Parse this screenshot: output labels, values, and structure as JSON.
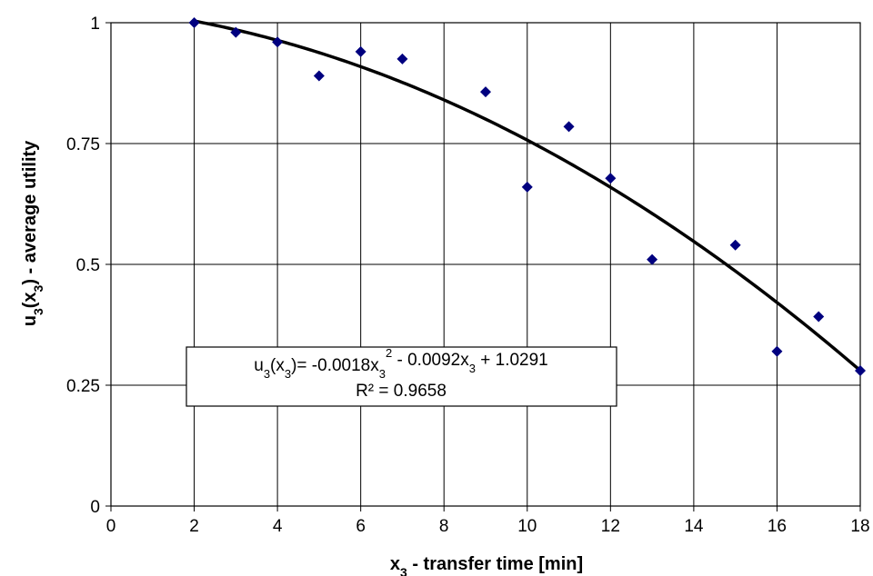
{
  "chart_data": {
    "type": "scatter",
    "x_axis": {
      "label": {
        "main": "x",
        "sub": "3",
        "rest": " - transfer time [min]"
      },
      "range": [
        0,
        18
      ],
      "ticks": [
        0,
        2,
        4,
        6,
        8,
        10,
        12,
        14,
        16,
        18
      ],
      "tick_labels": [
        "0",
        "2",
        "4",
        "6",
        "8",
        "10",
        "12",
        "14",
        "16",
        "18"
      ]
    },
    "y_axis": {
      "label": {
        "main": "u",
        "sub1": "3",
        "mid": "(x",
        "sub2": "3",
        "rest": ") - average utility"
      },
      "range": [
        0,
        1
      ],
      "ticks": [
        0,
        0.25,
        0.5,
        0.75,
        1
      ],
      "tick_labels": [
        "0",
        "0.25",
        "0.5",
        "0.75",
        "1"
      ]
    },
    "grid": true,
    "series": [
      {
        "kind": "points",
        "marker": "diamond",
        "color": "#00007f",
        "x": [
          2,
          3,
          4,
          5,
          6,
          7,
          9,
          10,
          11,
          12,
          13,
          15,
          16,
          17,
          18
        ],
        "y": [
          1.0,
          0.98,
          0.96,
          0.89,
          0.94,
          0.925,
          0.857,
          0.66,
          0.785,
          0.678,
          0.51,
          0.54,
          0.32,
          0.392,
          0.28
        ]
      },
      {
        "kind": "trendline",
        "fit": "polynomial",
        "color": "#000000",
        "coefficients": {
          "a": -0.0018,
          "b": -0.0092,
          "c": 1.0291
        },
        "x_range": [
          2,
          18
        ]
      }
    ],
    "annotation": {
      "equation": {
        "p1": "u",
        "p1_sub": "3",
        "p2": "(x",
        "p2_sub": "3",
        "p3": ")= -0.0018x",
        "p3_sub": "3",
        "p3_sup": "2",
        "p4": " - 0.0092x",
        "p4_sub": "3",
        "p5": " + 1.0291"
      },
      "r_squared": "R² = 0.9658"
    }
  }
}
